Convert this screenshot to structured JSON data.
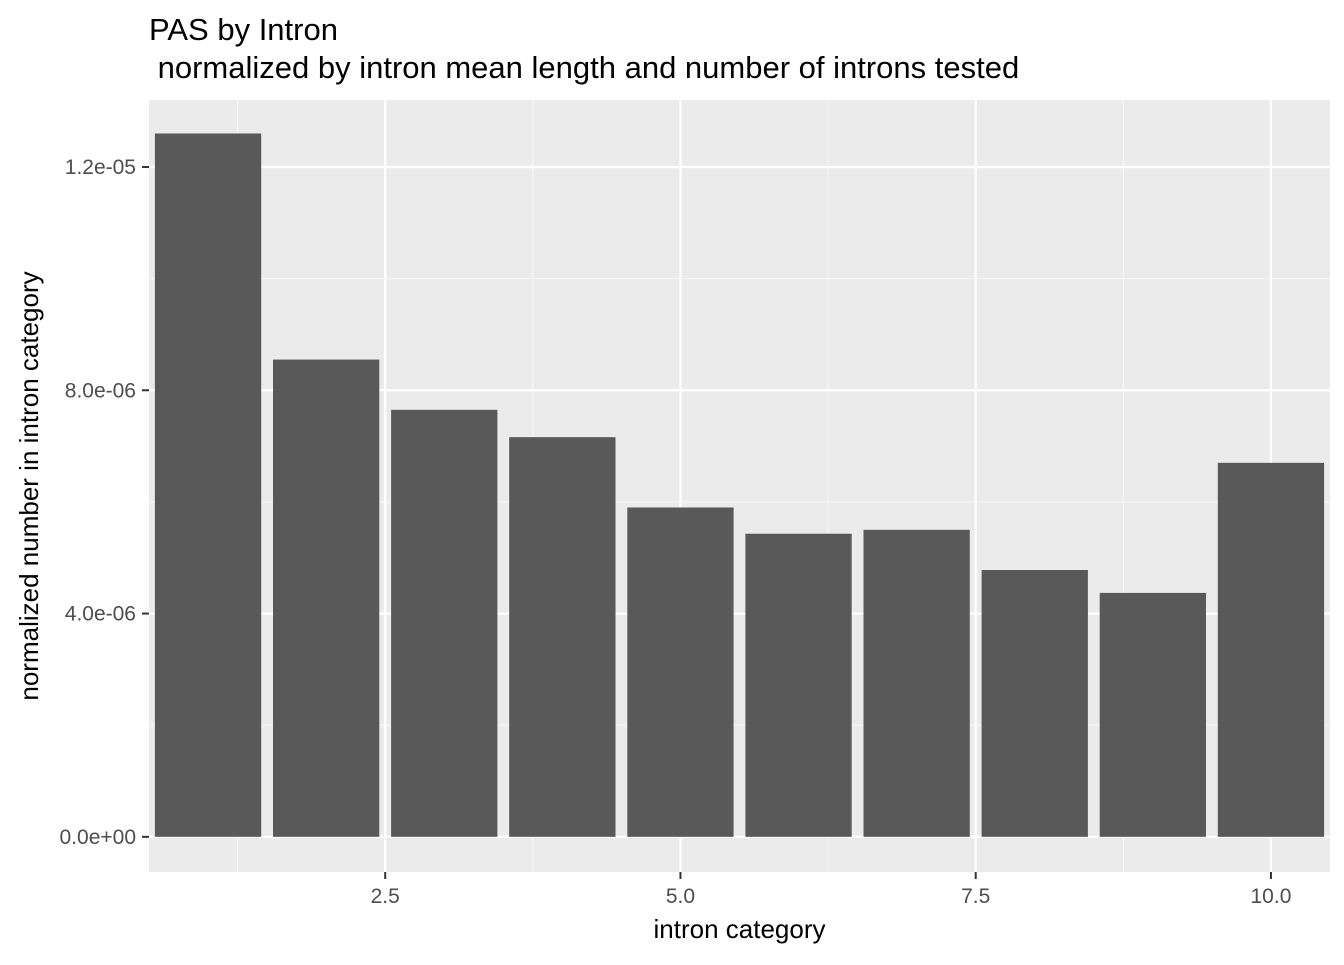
{
  "chart_data": {
    "type": "bar",
    "title": "PAS by Intron",
    "subtitle": " normalized by intron mean length and number of introns tested",
    "xlabel": "intron category",
    "ylabel": "normalized number in intron category",
    "x": [
      1,
      2,
      3,
      4,
      5,
      6,
      7,
      8,
      9,
      10
    ],
    "values": [
      1.26e-05,
      8.55e-06,
      7.65e-06,
      7.16e-06,
      5.9e-06,
      5.43e-06,
      5.5e-06,
      4.78e-06,
      4.37e-06,
      6.7e-06
    ],
    "xlim": [
      0.5,
      10.5
    ],
    "ylim": [
      -6.3e-07,
      1.32e-05
    ],
    "x_ticks": [
      2.5,
      5.0,
      7.5,
      10.0
    ],
    "x_tick_labels": [
      "2.5",
      "5.0",
      "7.5",
      "10.0"
    ],
    "y_ticks": [
      0,
      4e-06,
      8e-06,
      1.2e-05
    ],
    "y_tick_labels": [
      "0.0e+00",
      "4.0e-06",
      "8.0e-06",
      "1.2e-05"
    ],
    "grid": true,
    "legend": "none",
    "colors": {
      "bar": "#595959",
      "panel_background": "#ebebeb",
      "grid_major": "#ffffff",
      "grid_minor": "#f7f7f7",
      "tick_mark": "#333333",
      "tick_label": "#4d4d4d"
    }
  }
}
